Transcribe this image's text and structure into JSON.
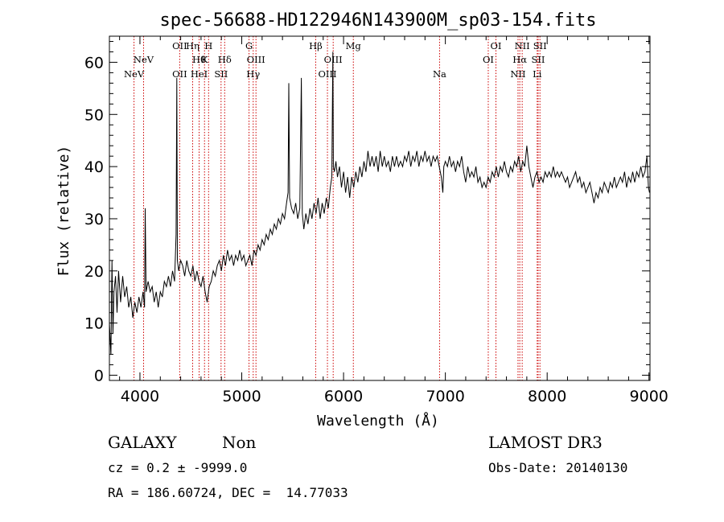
{
  "chart_data": {
    "type": "line",
    "title": "spec-56688-HD122946N143900M_sp03-154.fits",
    "xlabel": "Wavelength (Å)",
    "ylabel": "Flux (relative)",
    "xlim": [
      3700,
      9010
    ],
    "ylim": [
      -1,
      65
    ],
    "x_ticks": [
      4000,
      5000,
      6000,
      7000,
      8000,
      9000
    ],
    "y_ticks": [
      0,
      10,
      20,
      30,
      40,
      50,
      60
    ],
    "series": [
      {
        "name": "spectrum",
        "points": [
          [
            3700,
            10
          ],
          [
            3715,
            4
          ],
          [
            3725,
            22
          ],
          [
            3735,
            8
          ],
          [
            3745,
            16
          ],
          [
            3760,
            19
          ],
          [
            3775,
            12
          ],
          [
            3790,
            20
          ],
          [
            3810,
            14
          ],
          [
            3830,
            19
          ],
          [
            3850,
            15
          ],
          [
            3870,
            17
          ],
          [
            3890,
            13
          ],
          [
            3910,
            15
          ],
          [
            3930,
            11
          ],
          [
            3950,
            14
          ],
          [
            3970,
            12
          ],
          [
            3990,
            15
          ],
          [
            4010,
            13
          ],
          [
            4030,
            16
          ],
          [
            4045,
            13
          ],
          [
            4052,
            32
          ],
          [
            4060,
            16
          ],
          [
            4080,
            18
          ],
          [
            4100,
            16
          ],
          [
            4120,
            17
          ],
          [
            4140,
            14
          ],
          [
            4160,
            16
          ],
          [
            4180,
            13
          ],
          [
            4200,
            16
          ],
          [
            4220,
            15
          ],
          [
            4240,
            18
          ],
          [
            4260,
            17
          ],
          [
            4280,
            19
          ],
          [
            4300,
            17
          ],
          [
            4320,
            20
          ],
          [
            4340,
            18
          ],
          [
            4355,
            27
          ],
          [
            4362,
            57
          ],
          [
            4368,
            22
          ],
          [
            4380,
            20
          ],
          [
            4400,
            22
          ],
          [
            4420,
            21
          ],
          [
            4440,
            19
          ],
          [
            4460,
            22
          ],
          [
            4480,
            20
          ],
          [
            4500,
            19
          ],
          [
            4520,
            21
          ],
          [
            4540,
            18
          ],
          [
            4560,
            20
          ],
          [
            4580,
            18
          ],
          [
            4600,
            17
          ],
          [
            4620,
            19
          ],
          [
            4640,
            16
          ],
          [
            4660,
            14
          ],
          [
            4680,
            17
          ],
          [
            4700,
            18
          ],
          [
            4720,
            20
          ],
          [
            4740,
            19
          ],
          [
            4760,
            21
          ],
          [
            4780,
            22
          ],
          [
            4800,
            20
          ],
          [
            4820,
            23
          ],
          [
            4840,
            21
          ],
          [
            4860,
            24
          ],
          [
            4880,
            22
          ],
          [
            4900,
            23
          ],
          [
            4920,
            21
          ],
          [
            4940,
            23
          ],
          [
            4960,
            22
          ],
          [
            4980,
            24
          ],
          [
            5000,
            22
          ],
          [
            5020,
            23
          ],
          [
            5040,
            21
          ],
          [
            5060,
            22
          ],
          [
            5080,
            23
          ],
          [
            5100,
            21
          ],
          [
            5120,
            24
          ],
          [
            5140,
            23
          ],
          [
            5160,
            25
          ],
          [
            5180,
            24
          ],
          [
            5200,
            26
          ],
          [
            5220,
            25
          ],
          [
            5240,
            27
          ],
          [
            5260,
            26
          ],
          [
            5280,
            28
          ],
          [
            5300,
            27
          ],
          [
            5320,
            29
          ],
          [
            5340,
            28
          ],
          [
            5360,
            30
          ],
          [
            5380,
            29
          ],
          [
            5400,
            31
          ],
          [
            5420,
            30
          ],
          [
            5440,
            33
          ],
          [
            5455,
            35
          ],
          [
            5462,
            56
          ],
          [
            5470,
            34
          ],
          [
            5490,
            32
          ],
          [
            5510,
            31
          ],
          [
            5530,
            33
          ],
          [
            5550,
            30
          ],
          [
            5570,
            32
          ],
          [
            5585,
            57
          ],
          [
            5595,
            31
          ],
          [
            5610,
            28
          ],
          [
            5630,
            31
          ],
          [
            5650,
            29
          ],
          [
            5670,
            32
          ],
          [
            5690,
            30
          ],
          [
            5710,
            33
          ],
          [
            5730,
            31
          ],
          [
            5750,
            34
          ],
          [
            5770,
            30
          ],
          [
            5790,
            33
          ],
          [
            5810,
            31
          ],
          [
            5830,
            34
          ],
          [
            5850,
            32
          ],
          [
            5870,
            36
          ],
          [
            5885,
            38
          ],
          [
            5892,
            55
          ],
          [
            5895,
            62
          ],
          [
            5900,
            40
          ],
          [
            5910,
            39
          ],
          [
            5925,
            41
          ],
          [
            5940,
            38
          ],
          [
            5960,
            40
          ],
          [
            5980,
            36
          ],
          [
            6000,
            39
          ],
          [
            6020,
            35
          ],
          [
            6040,
            38
          ],
          [
            6060,
            34
          ],
          [
            6080,
            38
          ],
          [
            6100,
            36
          ],
          [
            6120,
            39
          ],
          [
            6140,
            37
          ],
          [
            6160,
            40
          ],
          [
            6180,
            38
          ],
          [
            6200,
            41
          ],
          [
            6220,
            39
          ],
          [
            6240,
            43
          ],
          [
            6260,
            40
          ],
          [
            6280,
            42
          ],
          [
            6300,
            40
          ],
          [
            6320,
            42
          ],
          [
            6340,
            39
          ],
          [
            6360,
            43
          ],
          [
            6380,
            40
          ],
          [
            6400,
            42
          ],
          [
            6420,
            40
          ],
          [
            6440,
            41
          ],
          [
            6460,
            39
          ],
          [
            6480,
            42
          ],
          [
            6500,
            40
          ],
          [
            6520,
            42
          ],
          [
            6540,
            40
          ],
          [
            6560,
            41
          ],
          [
            6580,
            40
          ],
          [
            6600,
            42
          ],
          [
            6620,
            41
          ],
          [
            6640,
            43
          ],
          [
            6660,
            40
          ],
          [
            6680,
            42
          ],
          [
            6700,
            41
          ],
          [
            6720,
            43
          ],
          [
            6740,
            40
          ],
          [
            6760,
            42
          ],
          [
            6780,
            41
          ],
          [
            6800,
            43
          ],
          [
            6820,
            41
          ],
          [
            6840,
            42
          ],
          [
            6860,
            40
          ],
          [
            6880,
            42
          ],
          [
            6900,
            41
          ],
          [
            6920,
            42
          ],
          [
            6940,
            40
          ],
          [
            6960,
            38
          ],
          [
            6975,
            35
          ],
          [
            6985,
            40
          ],
          [
            7000,
            41
          ],
          [
            7020,
            40
          ],
          [
            7040,
            42
          ],
          [
            7060,
            40
          ],
          [
            7080,
            41
          ],
          [
            7100,
            39
          ],
          [
            7120,
            41
          ],
          [
            7140,
            40
          ],
          [
            7160,
            42
          ],
          [
            7180,
            39
          ],
          [
            7200,
            37
          ],
          [
            7220,
            40
          ],
          [
            7240,
            38
          ],
          [
            7260,
            39
          ],
          [
            7280,
            38
          ],
          [
            7300,
            40
          ],
          [
            7320,
            37
          ],
          [
            7340,
            38
          ],
          [
            7360,
            36
          ],
          [
            7380,
            37
          ],
          [
            7400,
            36
          ],
          [
            7420,
            38
          ],
          [
            7440,
            37
          ],
          [
            7460,
            39
          ],
          [
            7480,
            38
          ],
          [
            7500,
            40
          ],
          [
            7520,
            38
          ],
          [
            7540,
            40
          ],
          [
            7560,
            39
          ],
          [
            7580,
            41
          ],
          [
            7600,
            39
          ],
          [
            7620,
            38
          ],
          [
            7640,
            40
          ],
          [
            7660,
            39
          ],
          [
            7680,
            41
          ],
          [
            7700,
            40
          ],
          [
            7720,
            42
          ],
          [
            7740,
            39
          ],
          [
            7760,
            41
          ],
          [
            7780,
            40
          ],
          [
            7800,
            44
          ],
          [
            7820,
            40
          ],
          [
            7840,
            38
          ],
          [
            7860,
            36
          ],
          [
            7880,
            38
          ],
          [
            7900,
            39
          ],
          [
            7920,
            37
          ],
          [
            7940,
            38
          ],
          [
            7960,
            37
          ],
          [
            7980,
            39
          ],
          [
            8000,
            38
          ],
          [
            8020,
            39
          ],
          [
            8040,
            38
          ],
          [
            8060,
            40
          ],
          [
            8080,
            38
          ],
          [
            8100,
            39
          ],
          [
            8120,
            38
          ],
          [
            8140,
            39
          ],
          [
            8160,
            38
          ],
          [
            8180,
            37
          ],
          [
            8200,
            38
          ],
          [
            8220,
            36
          ],
          [
            8240,
            37
          ],
          [
            8260,
            38
          ],
          [
            8280,
            39
          ],
          [
            8300,
            37
          ],
          [
            8320,
            38
          ],
          [
            8340,
            36
          ],
          [
            8360,
            37
          ],
          [
            8380,
            35
          ],
          [
            8400,
            36
          ],
          [
            8420,
            37
          ],
          [
            8440,
            35
          ],
          [
            8460,
            33
          ],
          [
            8480,
            35
          ],
          [
            8500,
            34
          ],
          [
            8520,
            36
          ],
          [
            8540,
            35
          ],
          [
            8560,
            37
          ],
          [
            8580,
            36
          ],
          [
            8600,
            35
          ],
          [
            8620,
            37
          ],
          [
            8640,
            36
          ],
          [
            8660,
            38
          ],
          [
            8680,
            36
          ],
          [
            8700,
            37
          ],
          [
            8720,
            38
          ],
          [
            8740,
            37
          ],
          [
            8760,
            39
          ],
          [
            8780,
            36
          ],
          [
            8800,
            38
          ],
          [
            8820,
            37
          ],
          [
            8840,
            39
          ],
          [
            8860,
            37
          ],
          [
            8880,
            39
          ],
          [
            8900,
            38
          ],
          [
            8920,
            40
          ],
          [
            8940,
            38
          ],
          [
            8960,
            39
          ],
          [
            8980,
            42
          ],
          [
            8995,
            36
          ],
          [
            9005,
            35
          ]
        ]
      }
    ],
    "emission_lines": [
      {
        "label": "NeV",
        "wavelength": 3346,
        "row": 2
      },
      {
        "label": "NeV",
        "wavelength": 3426,
        "row": 1
      },
      {
        "label": "OII",
        "wavelength": 3727,
        "row": 0
      },
      {
        "label": "OII",
        "wavelength": 3727,
        "row": 2
      },
      {
        "label": "Hη",
        "wavelength": 3835,
        "row": 0
      },
      {
        "label": "Hθ",
        "wavelength": 3889,
        "row": 1
      },
      {
        "label": "HeI",
        "wavelength": 3889,
        "row": 2
      },
      {
        "label": "H",
        "wavelength": 3968,
        "row": 0
      },
      {
        "label": "K",
        "wavelength": 3934,
        "row": 1
      },
      {
        "label": "Hδ",
        "wavelength": 4102,
        "row": 1
      },
      {
        "label": "SII",
        "wavelength": 4072,
        "row": 2
      },
      {
        "label": "G",
        "wavelength": 4305,
        "row": 0
      },
      {
        "label": "OIII",
        "wavelength": 4363,
        "row": 1
      },
      {
        "label": "Hγ",
        "wavelength": 4340,
        "row": 2
      },
      {
        "label": "Hβ",
        "wavelength": 4861,
        "row": 0
      },
      {
        "label": "OIII",
        "wavelength": 5007,
        "row": 1
      },
      {
        "label": "OIII",
        "wavelength": 4959,
        "row": 2
      },
      {
        "label": "Mg",
        "wavelength": 5175,
        "row": 0
      },
      {
        "label": "Na",
        "wavelength": 5894,
        "row": 2
      },
      {
        "label": "OI",
        "wavelength": 6364,
        "row": 0
      },
      {
        "label": "OI",
        "wavelength": 6300,
        "row": 1
      },
      {
        "label": "NII",
        "wavelength": 6583,
        "row": 0
      },
      {
        "label": "Hα",
        "wavelength": 6563,
        "row": 1
      },
      {
        "label": "NII",
        "wavelength": 6548,
        "row": 2
      },
      {
        "label": "SII",
        "wavelength": 6731,
        "row": 0
      },
      {
        "label": "SII",
        "wavelength": 6716,
        "row": 1
      },
      {
        "label": "Li",
        "wavelength": 6708,
        "row": 2
      }
    ],
    "redshift_for_line_markers": 0.178
  },
  "footer": {
    "classification": "GALAXY",
    "subclass": "Non",
    "survey": "LAMOST DR3",
    "cz": "cz = 0.2 ± -9999.0",
    "obs_date": "Obs-Date: 20140130",
    "coords": "RA = 186.60724, DEC =  14.77033"
  },
  "colors": {
    "spectrum": "#000000",
    "line_markers": "#cc0000",
    "axes": "#000000"
  }
}
